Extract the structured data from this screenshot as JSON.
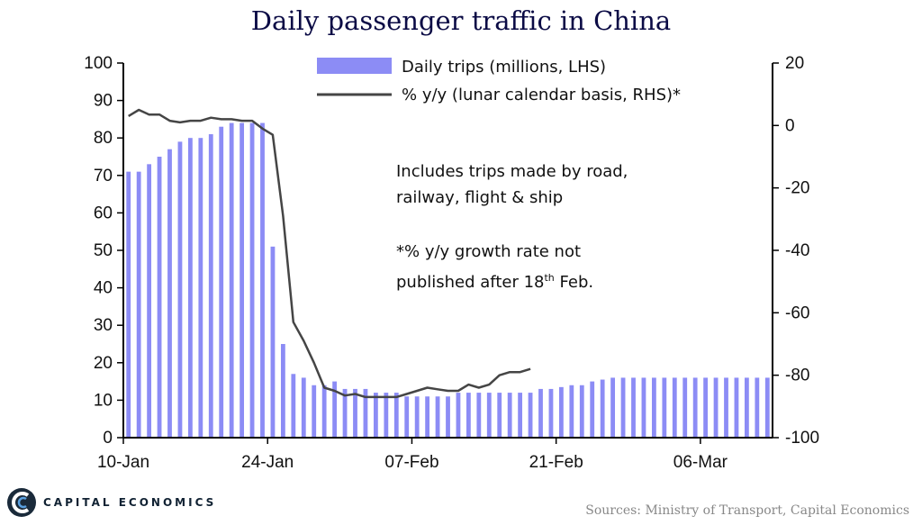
{
  "chart_data": {
    "type": "bar+line",
    "title": "Daily passenger traffic in China",
    "left_axis": {
      "ylim": [
        0,
        100
      ],
      "ticks": [
        "0",
        "10",
        "20",
        "30",
        "40",
        "50",
        "60",
        "70",
        "80",
        "90",
        "100"
      ]
    },
    "right_axis": {
      "ylim": [
        -100,
        20
      ],
      "ticks": [
        "-100",
        "-80",
        "-60",
        "-40",
        "-20",
        "0",
        "20"
      ]
    },
    "x_tick_labels": [
      "10-Jan",
      "24-Jan",
      "07-Feb",
      "21-Feb",
      "06-Mar"
    ],
    "x_tick_day_index": [
      0,
      14,
      28,
      42,
      56
    ],
    "series": [
      {
        "name": "Daily trips (millions, LHS)",
        "type": "bar",
        "color": "#8c8cf5",
        "values": [
          71,
          71,
          73,
          75,
          77,
          79,
          80,
          80,
          81,
          83,
          84,
          84,
          84,
          84,
          51,
          25,
          17,
          16,
          14,
          14,
          15,
          13,
          13,
          13,
          12,
          12,
          12,
          11,
          11,
          11,
          11,
          11,
          12,
          12,
          12,
          12,
          12,
          12,
          12,
          12,
          13,
          13,
          13.5,
          14,
          14,
          15,
          15.5,
          16,
          16,
          16,
          16,
          16,
          16,
          16,
          16,
          16,
          16,
          16,
          16,
          16,
          16,
          16,
          16
        ]
      },
      {
        "name": "% y/y (lunar calendar basis, RHS)*",
        "type": "line",
        "color": "#454545",
        "values": [
          3,
          5,
          3.5,
          3.5,
          1.5,
          1,
          1.5,
          1.5,
          2.5,
          2,
          2,
          1.5,
          1.5,
          -1,
          -3,
          -29,
          -63,
          -69,
          -76,
          -84,
          -85,
          -86.5,
          -86,
          -87,
          -87,
          -87,
          -87,
          -86,
          -85,
          -84,
          -84.5,
          -85,
          -85,
          -83,
          -84,
          -83,
          -80,
          -79,
          -79,
          -78
        ]
      }
    ],
    "annotations": {
      "note1_line1": "Includes  trips  made by road,",
      "note1_line2": "railway,  flight  &  ship",
      "note2_line1": "*% y/y growth  rate not",
      "note2_line2_pre": "published   after 18",
      "note2_sup": "th",
      "note2_line2_post": "  Feb."
    }
  },
  "branding": {
    "logo_text": "CAPITAL ECONOMICS",
    "logo_color": "#1a2a3a"
  },
  "source_text": "Sources: Ministry of Transport, Capital Economics"
}
